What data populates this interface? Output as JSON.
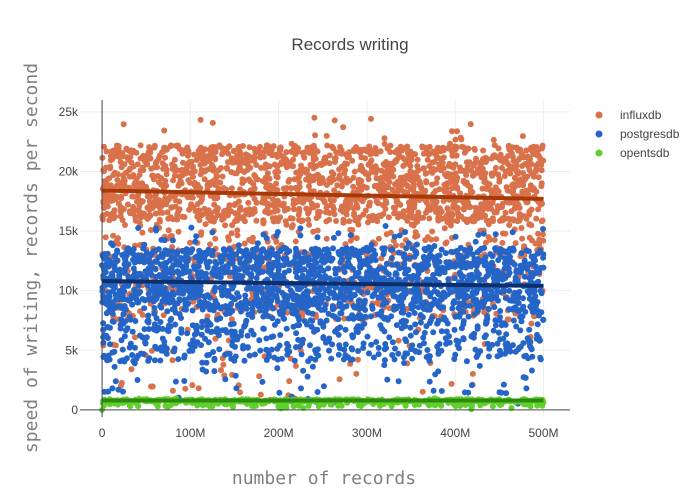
{
  "chart_data": {
    "type": "scatter",
    "title": "Records writing",
    "xlabel": "number of records",
    "ylabel": "speed of writing, records per second",
    "xlim": [
      -25,
      530
    ],
    "ylim": [
      -600,
      26000
    ],
    "x_unit_note": "x values in millions of records (M)",
    "x_ticks": [
      {
        "value": 0,
        "label": "0"
      },
      {
        "value": 100,
        "label": "100M"
      },
      {
        "value": 200,
        "label": "200M"
      },
      {
        "value": 300,
        "label": "300M"
      },
      {
        "value": 400,
        "label": "400M"
      },
      {
        "value": 500,
        "label": "500M"
      }
    ],
    "y_ticks": [
      {
        "value": 0,
        "label": "0"
      },
      {
        "value": 5000,
        "label": "5k"
      },
      {
        "value": 10000,
        "label": "10k"
      },
      {
        "value": 15000,
        "label": "15k"
      },
      {
        "value": 20000,
        "label": "20k"
      },
      {
        "value": 25000,
        "label": "25k"
      }
    ],
    "grid": true,
    "legend_position": "top-right",
    "series": [
      {
        "name": "influxdb",
        "color": "#d9714a",
        "trend_color": "#a83a0a",
        "trend": {
          "x": [
            0,
            500
          ],
          "y": [
            18400,
            17700
          ]
        },
        "band": {
          "dense_min": 15800,
          "dense_max": 22200,
          "min": 800,
          "max": 24600
        }
      },
      {
        "name": "postgresdb",
        "color": "#2565c8",
        "trend_color": "#0b2f6b",
        "trend": {
          "x": [
            0,
            500
          ],
          "y": [
            10800,
            10400
          ]
        },
        "band": {
          "dense_min": 8400,
          "dense_max": 13600,
          "min": 500,
          "max": 15500
        }
      },
      {
        "name": "opentsdb",
        "color": "#5fd12a",
        "trend_color": "#2d8a0f",
        "trend": {
          "x": [
            0,
            500
          ],
          "y": [
            780,
            780
          ]
        },
        "band": {
          "dense_min": 650,
          "dense_max": 900,
          "min": 0,
          "max": 1000
        }
      }
    ]
  }
}
